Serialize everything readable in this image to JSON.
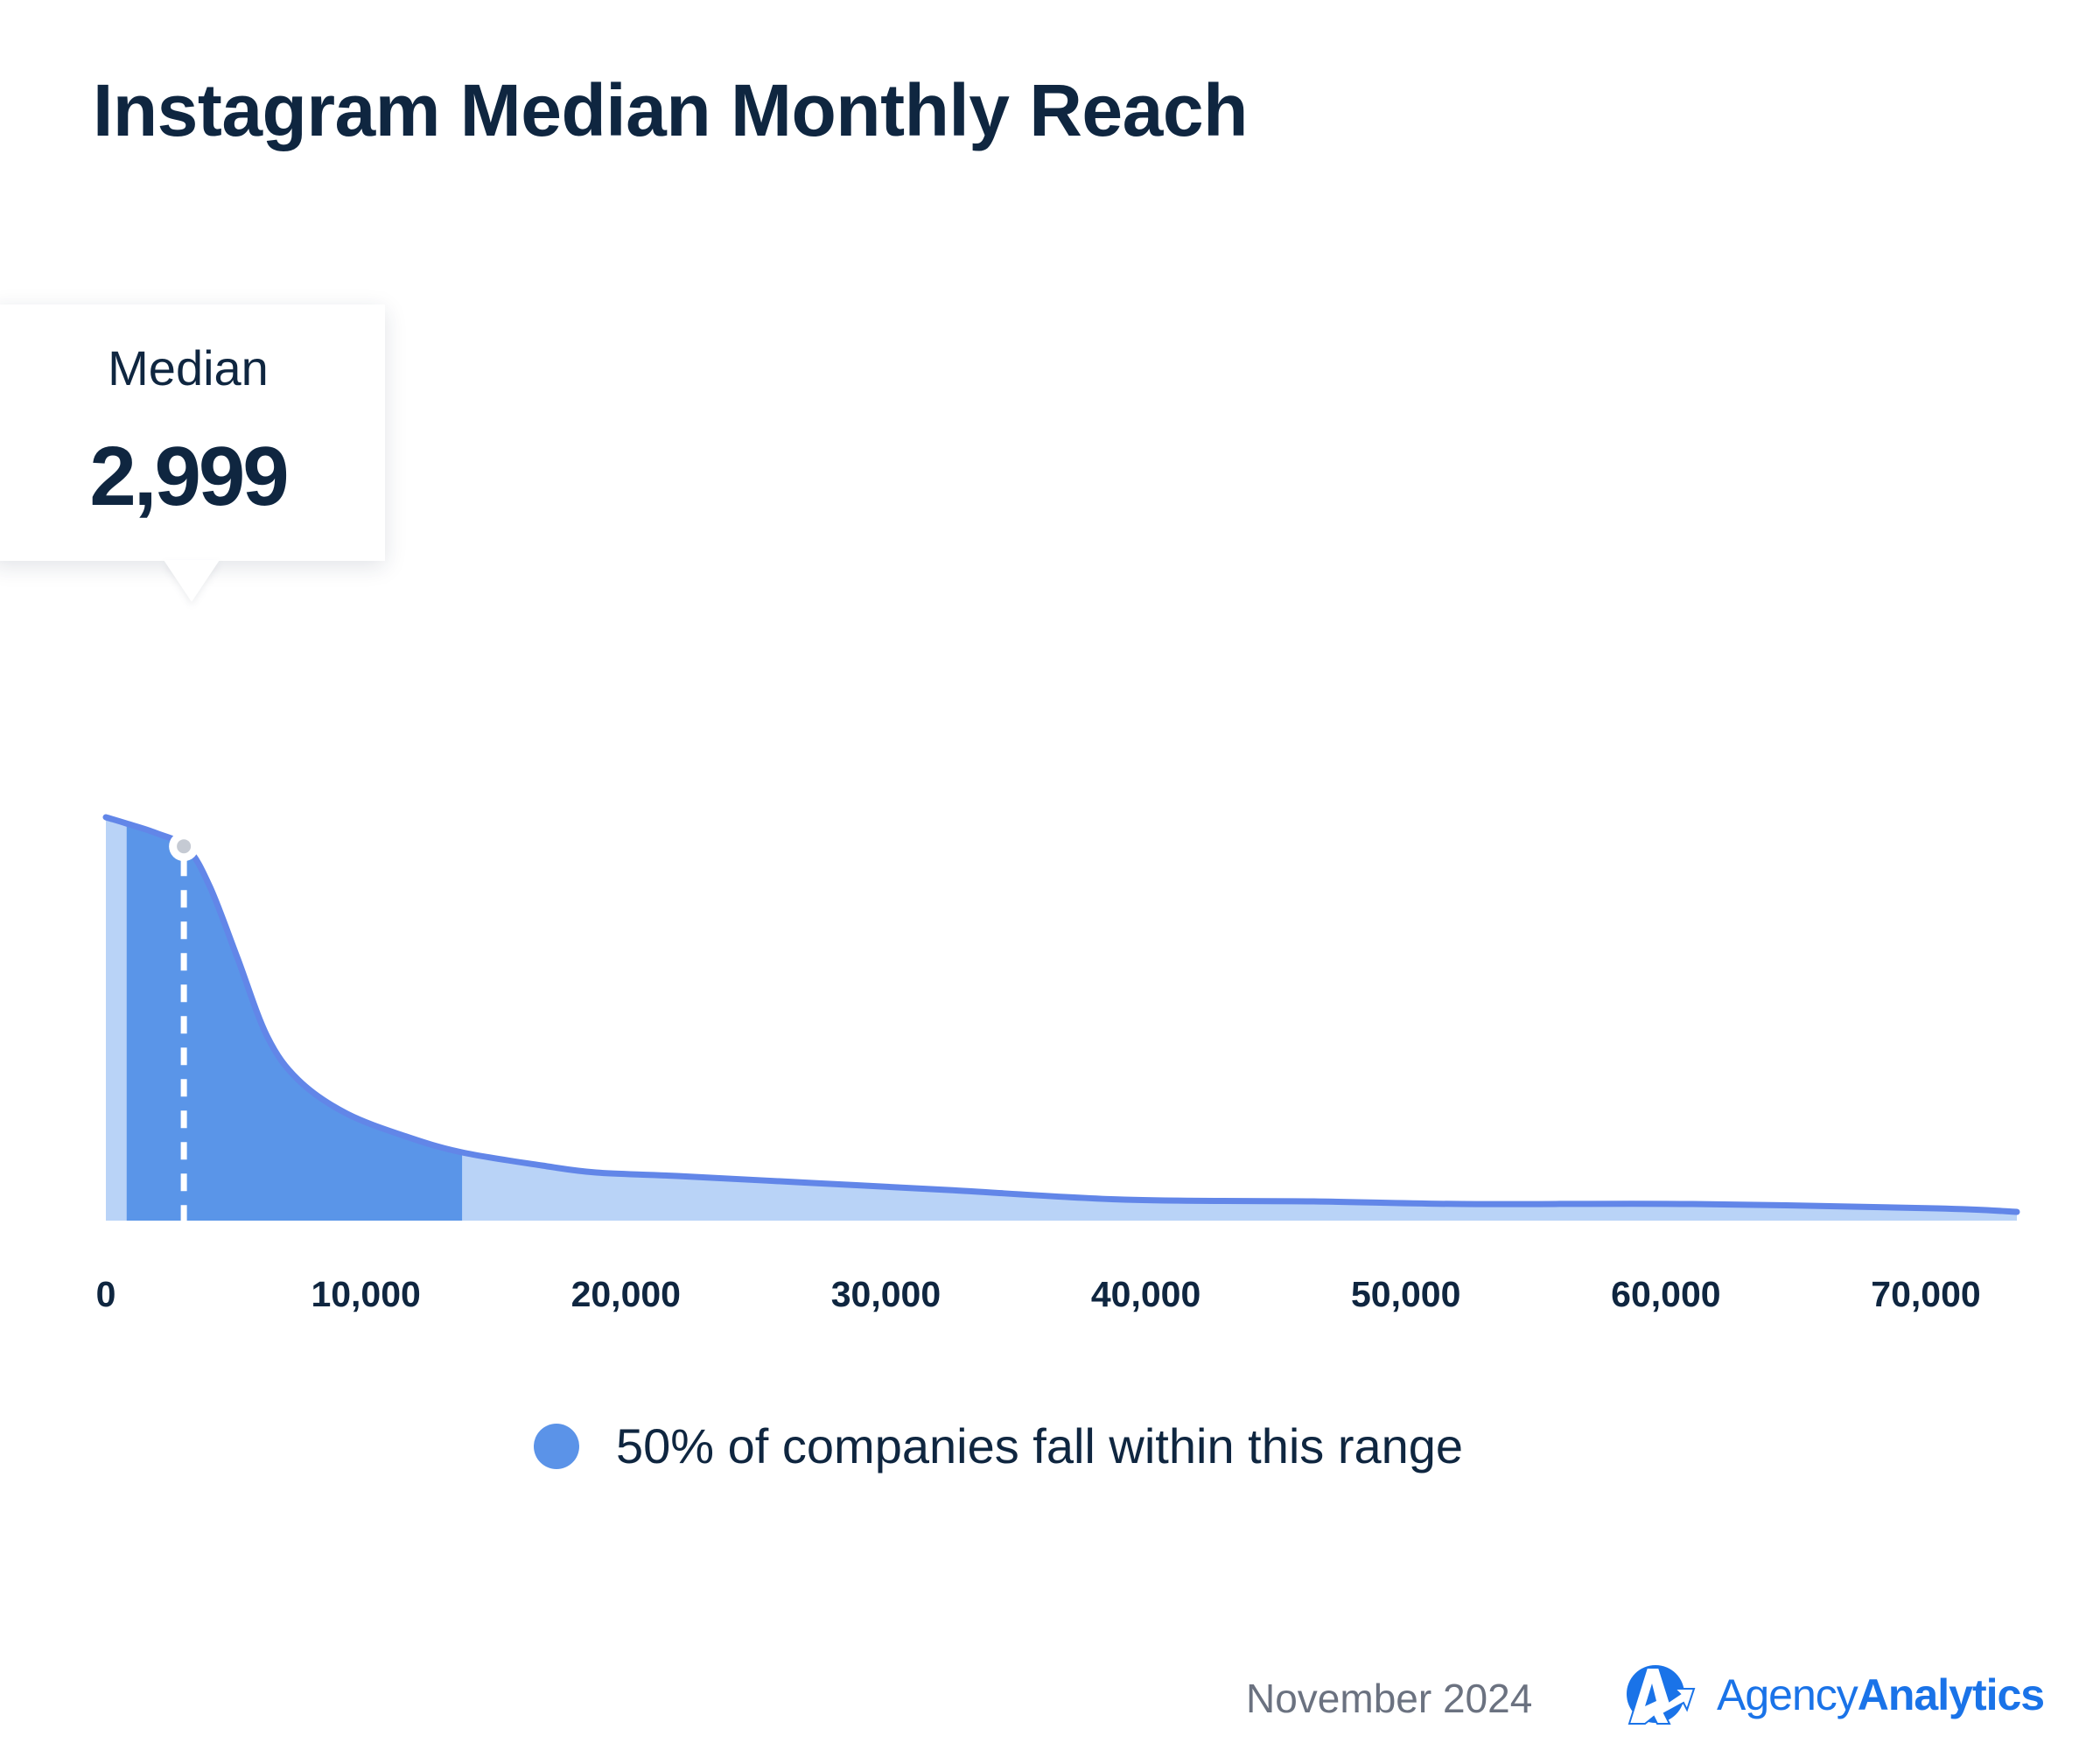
{
  "chart_data": {
    "type": "area",
    "title": "Instagram Median Monthly Reach",
    "xlabel": "",
    "ylabel": "",
    "xlim": [
      0,
      73500
    ],
    "x_ticks": [
      0,
      10000,
      20000,
      30000,
      40000,
      50000,
      60000,
      70000
    ],
    "x_tick_labels": [
      "0",
      "10,000",
      "20,000",
      "30,000",
      "40,000",
      "50,000",
      "60,000",
      "70,000"
    ],
    "grid": false,
    "series": [
      {
        "x": [
          0,
          781,
          1927,
          3125,
          4010,
          5052,
          6198,
          7396,
          9219,
          11562,
          13698,
          16771,
          18854,
          21979,
          27187,
          32396,
          39166,
          46458,
          52187,
          61041,
          70416,
          73500
        ],
        "y": [
          461,
          454,
          443,
          426,
          381,
          301,
          211,
          161,
          123,
          96,
          78,
          63,
          55,
          51,
          43,
          35,
          24,
          22,
          19,
          19,
          14,
          10
        ]
      }
    ],
    "highlight_range": [
      800,
      13700
    ],
    "median": {
      "label": "Median",
      "value": 2999,
      "display": "2,999"
    },
    "legend": {
      "label": "50% of companies fall within this range",
      "placement": "bottom-center"
    },
    "colors": {
      "line": "#6286e8",
      "light_fill": "#b9d3f7",
      "range_fill": "#5a95e8",
      "legend_dot": "#5b93e8",
      "text": "#0f2640"
    }
  },
  "footer": {
    "date": "November 2024",
    "brand_light": "Agency",
    "brand_bold": "Analytics",
    "brand_color": "#1a73e8",
    "logo_icon": "agencyanalytics-logo-icon"
  }
}
